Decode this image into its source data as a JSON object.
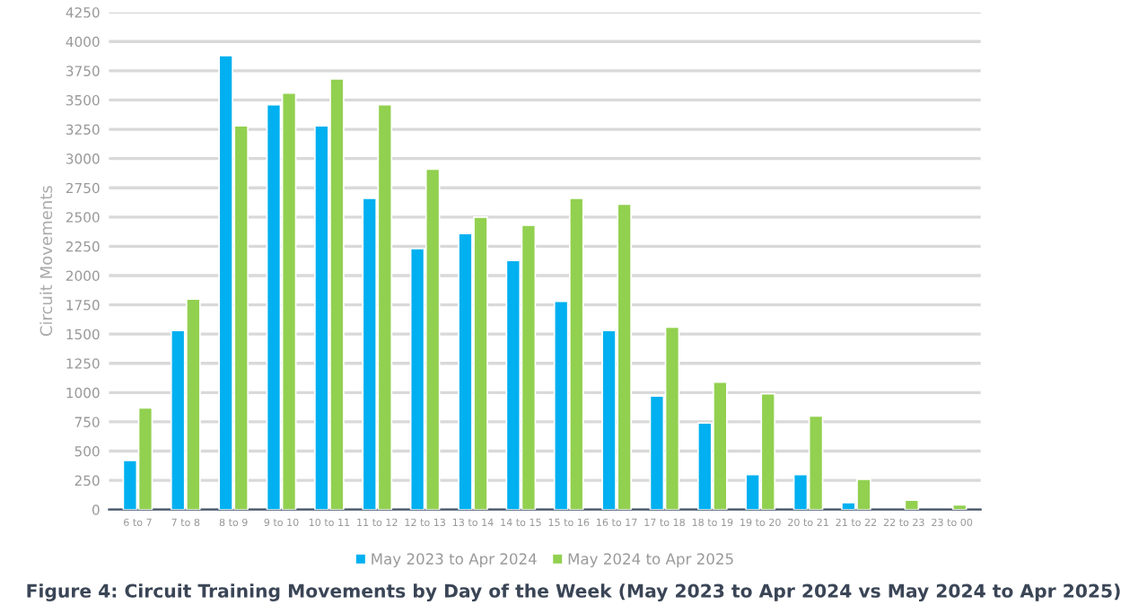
{
  "chart_data": {
    "type": "bar",
    "title": "Figure 4: Circuit Training Movements by Day of the Week (May 2023 to Apr 2024 vs May 2024 to Apr 2025)",
    "ylabel": "Circuit Movements",
    "categories": [
      "6 to 7",
      "7 to 8",
      "8 to 9",
      "9 to 10",
      "10 to 11",
      "11 to 12",
      "12 to 13",
      "13 to 14",
      "14 to 15",
      "15 to 16",
      "16 to 17",
      "17 to 18",
      "18 to 19",
      "19 to 20",
      "20 to 21",
      "21 to 22",
      "22 to 23",
      "23 to 00"
    ],
    "series": [
      {
        "name": "May 2023 to Apr 2024",
        "color": "#00b0f0",
        "values": [
          420,
          1530,
          3880,
          3460,
          3280,
          2660,
          2230,
          2360,
          2130,
          1780,
          1530,
          970,
          740,
          300,
          300,
          60,
          null,
          null
        ]
      },
      {
        "name": "May 2024 to Apr 2025",
        "color": "#92d050",
        "values": [
          870,
          1800,
          3280,
          3560,
          3680,
          3460,
          2910,
          2500,
          2430,
          2660,
          2610,
          1560,
          1090,
          990,
          800,
          260,
          80,
          40
        ]
      }
    ],
    "ylim": [
      0,
      4250
    ],
    "yticks": [
      0,
      250,
      500,
      750,
      1000,
      1250,
      1500,
      1750,
      2000,
      2250,
      2500,
      2750,
      3000,
      3250,
      3500,
      3750,
      4000,
      4250
    ],
    "grid": "y",
    "legend": "bottom"
  }
}
